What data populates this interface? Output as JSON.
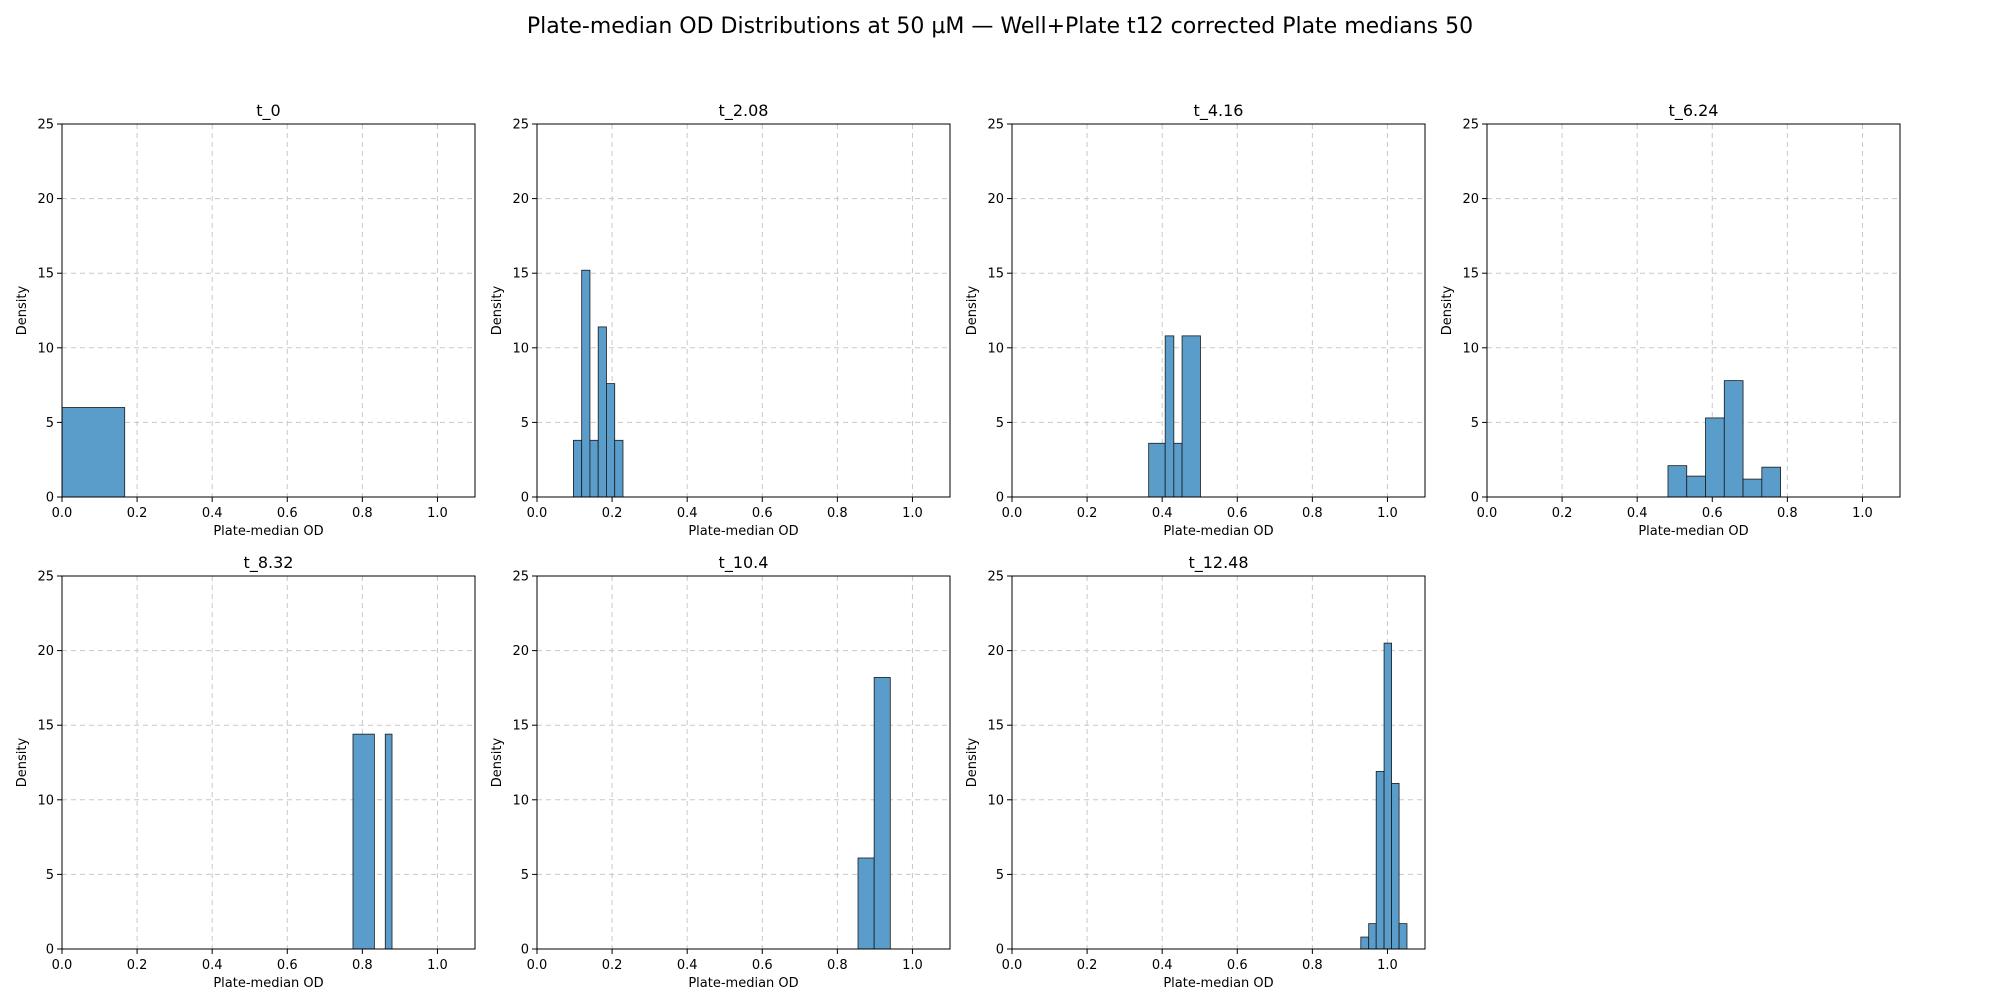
{
  "figure": {
    "title": "Plate-median OD Distributions at 50 µM — Well+Plate t12 corrected Plate medians 50"
  },
  "style": {
    "bar_fill": "#5a9dcb",
    "bar_stroke": "#1a1a1a",
    "grid_color": "#c8c8c8"
  },
  "chart_data": [
    {
      "type": "bar",
      "title": "t_0",
      "xlabel": "Plate-median OD",
      "ylabel": "Density",
      "xlim": [
        0,
        1.1
      ],
      "ylim": [
        0,
        25
      ],
      "grid": true,
      "xticks": [
        "0.0",
        "0.2",
        "0.4",
        "0.6",
        "0.8",
        "1.0"
      ],
      "yticks": [
        "0",
        "5",
        "10",
        "15",
        "20",
        "25"
      ],
      "bins": [
        {
          "x0": 0.0,
          "x1": 0.167,
          "density": 6.0
        }
      ]
    },
    {
      "type": "bar",
      "title": "t_2.08",
      "xlabel": "Plate-median OD",
      "ylabel": "Density",
      "xlim": [
        0,
        1.1
      ],
      "ylim": [
        0,
        25
      ],
      "grid": true,
      "xticks": [
        "0.0",
        "0.2",
        "0.4",
        "0.6",
        "0.8",
        "1.0"
      ],
      "yticks": [
        "0",
        "5",
        "10",
        "15",
        "20",
        "25"
      ],
      "bins": [
        {
          "x0": 0.097,
          "x1": 0.119,
          "density": 3.8
        },
        {
          "x0": 0.119,
          "x1": 0.141,
          "density": 15.2
        },
        {
          "x0": 0.141,
          "x1": 0.163,
          "density": 3.8
        },
        {
          "x0": 0.163,
          "x1": 0.185,
          "density": 11.4
        },
        {
          "x0": 0.185,
          "x1": 0.207,
          "density": 7.6
        },
        {
          "x0": 0.207,
          "x1": 0.229,
          "density": 3.8
        }
      ]
    },
    {
      "type": "bar",
      "title": "t_4.16",
      "xlabel": "Plate-median OD",
      "ylabel": "Density",
      "xlim": [
        0,
        1.1
      ],
      "ylim": [
        0,
        25
      ],
      "grid": true,
      "xticks": [
        "0.0",
        "0.2",
        "0.4",
        "0.6",
        "0.8",
        "1.0"
      ],
      "yticks": [
        "0",
        "5",
        "10",
        "15",
        "20",
        "25"
      ],
      "bins": [
        {
          "x0": 0.364,
          "x1": 0.408,
          "density": 3.6
        },
        {
          "x0": 0.408,
          "x1": 0.431,
          "density": 10.8
        },
        {
          "x0": 0.431,
          "x1": 0.453,
          "density": 3.6
        },
        {
          "x0": 0.453,
          "x1": 0.502,
          "density": 10.8
        }
      ]
    },
    {
      "type": "bar",
      "title": "t_6.24",
      "xlabel": "Plate-median OD",
      "ylabel": "Density",
      "xlim": [
        0,
        1.1
      ],
      "ylim": [
        0,
        25
      ],
      "grid": true,
      "xticks": [
        "0.0",
        "0.2",
        "0.4",
        "0.6",
        "0.8",
        "1.0"
      ],
      "yticks": [
        "0",
        "5",
        "10",
        "15",
        "20",
        "25"
      ],
      "bins": [
        {
          "x0": 0.482,
          "x1": 0.532,
          "density": 2.1
        },
        {
          "x0": 0.532,
          "x1": 0.582,
          "density": 1.4
        },
        {
          "x0": 0.582,
          "x1": 0.632,
          "density": 5.3
        },
        {
          "x0": 0.632,
          "x1": 0.682,
          "density": 7.8
        },
        {
          "x0": 0.682,
          "x1": 0.732,
          "density": 1.2
        },
        {
          "x0": 0.732,
          "x1": 0.782,
          "density": 2.0
        }
      ]
    },
    {
      "type": "bar",
      "title": "t_8.32",
      "xlabel": "Plate-median OD",
      "ylabel": "Density",
      "xlim": [
        0,
        1.1
      ],
      "ylim": [
        0,
        25
      ],
      "grid": true,
      "xticks": [
        "0.0",
        "0.2",
        "0.4",
        "0.6",
        "0.8",
        "1.0"
      ],
      "yticks": [
        "0",
        "5",
        "10",
        "15",
        "20",
        "25"
      ],
      "bins": [
        {
          "x0": 0.775,
          "x1": 0.832,
          "density": 14.4
        },
        {
          "x0": 0.861,
          "x1": 0.879,
          "density": 14.4
        }
      ]
    },
    {
      "type": "bar",
      "title": "t_10.4",
      "xlabel": "Plate-median OD",
      "ylabel": "Density",
      "xlim": [
        0,
        1.1
      ],
      "ylim": [
        0,
        25
      ],
      "grid": true,
      "xticks": [
        "0.0",
        "0.2",
        "0.4",
        "0.6",
        "0.8",
        "1.0"
      ],
      "yticks": [
        "0",
        "5",
        "10",
        "15",
        "20",
        "25"
      ],
      "bins": [
        {
          "x0": 0.855,
          "x1": 0.898,
          "density": 6.1
        },
        {
          "x0": 0.898,
          "x1": 0.941,
          "density": 18.2
        }
      ]
    },
    {
      "type": "bar",
      "title": "t_12.48",
      "xlabel": "Plate-median OD",
      "ylabel": "Density",
      "xlim": [
        0,
        1.1
      ],
      "ylim": [
        0,
        25
      ],
      "grid": true,
      "xticks": [
        "0.0",
        "0.2",
        "0.4",
        "0.6",
        "0.8",
        "1.0"
      ],
      "yticks": [
        "0",
        "5",
        "10",
        "15",
        "20",
        "25"
      ],
      "bins": [
        {
          "x0": 0.929,
          "x1": 0.95,
          "density": 0.8
        },
        {
          "x0": 0.95,
          "x1": 0.97,
          "density": 1.7
        },
        {
          "x0": 0.97,
          "x1": 0.991,
          "density": 11.9
        },
        {
          "x0": 0.991,
          "x1": 1.011,
          "density": 20.5
        },
        {
          "x0": 1.011,
          "x1": 1.031,
          "density": 11.1
        },
        {
          "x0": 1.031,
          "x1": 1.052,
          "density": 1.7
        }
      ]
    }
  ]
}
